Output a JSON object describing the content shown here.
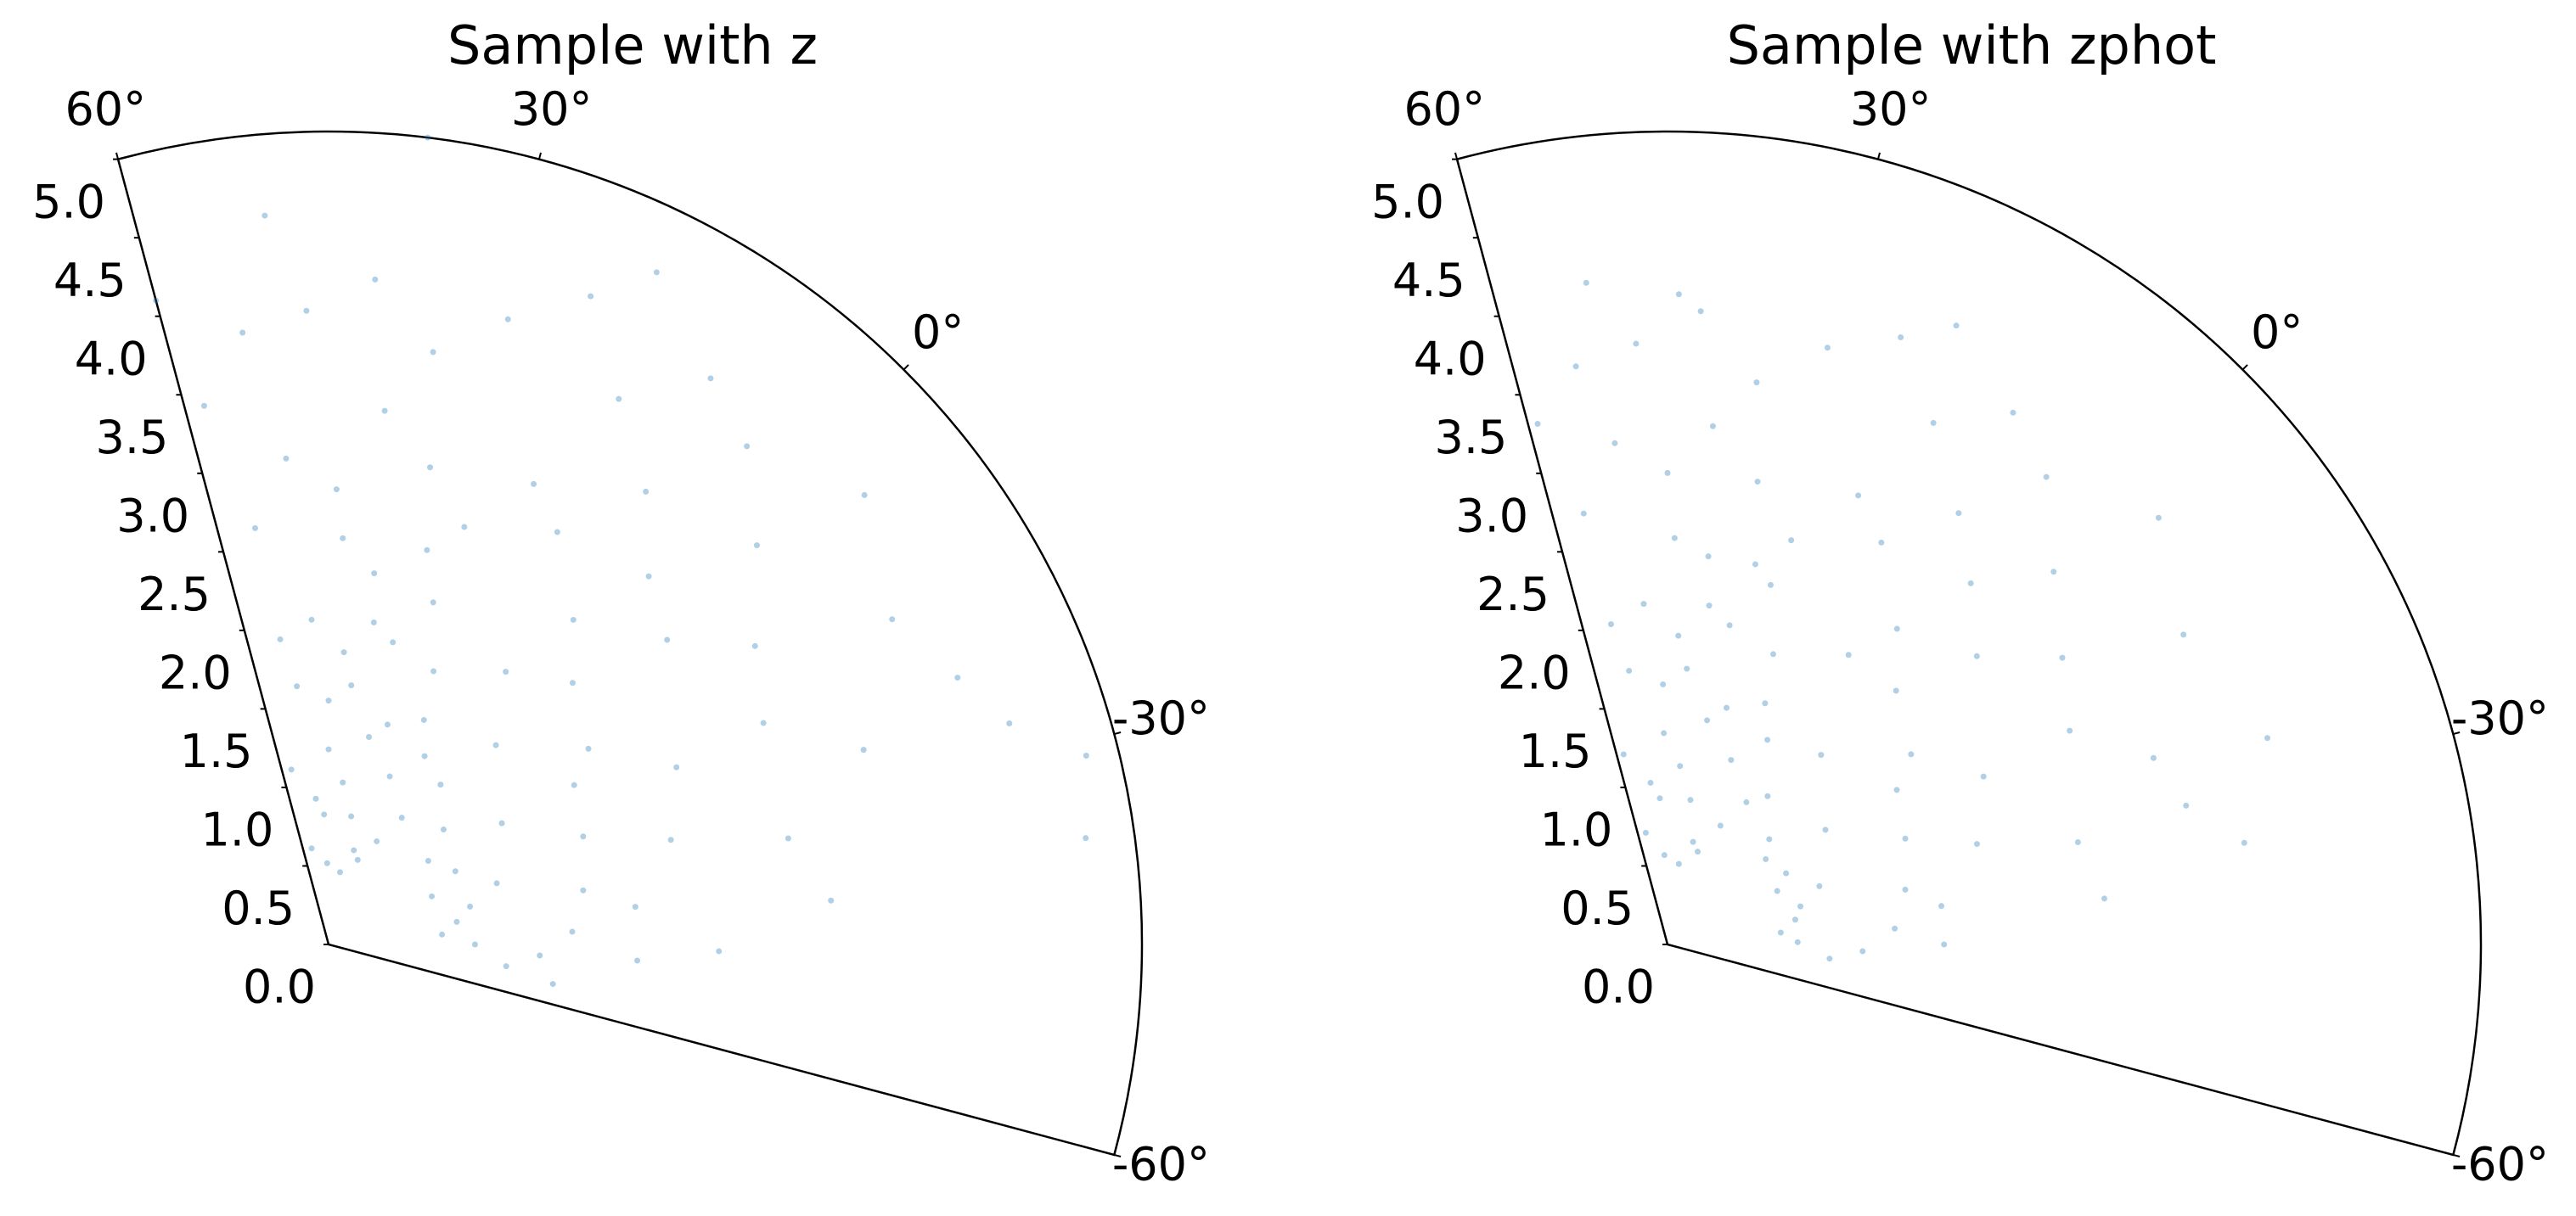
{
  "chart_data": [
    {
      "type": "scatter",
      "polar": true,
      "title": "Sample with z",
      "color": "#1f77b4",
      "thetalim": [
        -60,
        60
      ],
      "thetaticks": [
        {
          "value": 60,
          "label": "60°"
        },
        {
          "value": 30,
          "label": "30°"
        },
        {
          "value": 0,
          "label": "0°"
        },
        {
          "value": -30,
          "label": "-30°"
        },
        {
          "value": -60,
          "label": "-60°"
        }
      ],
      "rlim": [
        0,
        5
      ],
      "rticks": [
        {
          "value": 0,
          "label": "0.0"
        },
        0.5,
        {
          "value": 1,
          "label": "1.0"
        },
        1.5,
        {
          "value": 2,
          "label": "2.0"
        },
        2.5,
        {
          "value": 3,
          "label": "3.0"
        },
        3.5,
        {
          "value": 4,
          "label": "4.0"
        },
        4.5,
        {
          "value": 5,
          "label": "5.0"
        }
      ],
      "theta": [
        55,
        50,
        45,
        40,
        35,
        30,
        25,
        20,
        52,
        48,
        42,
        38,
        33,
        28,
        22,
        18,
        57,
        46,
        36,
        26,
        15,
        10,
        5,
        0,
        -5,
        -10,
        -15,
        -20,
        -25,
        -30,
        -35,
        -40,
        -45,
        12,
        8,
        2,
        -3,
        -8,
        -12,
        -18,
        -22,
        -28,
        -33,
        -38,
        -42,
        -48,
        55,
        50,
        44,
        39,
        33,
        27,
        21,
        16,
        10,
        4,
        -2,
        -10,
        -18,
        -25,
        -32,
        -40,
        -46,
        58,
        53,
        47,
        41,
        35,
        29,
        23,
        17,
        11,
        5,
        -5,
        -15,
        -27,
        -37,
        -31,
        50,
        60,
        38,
        45,
        40,
        34,
        30,
        47,
        37,
        24,
        43,
        31,
        54,
        -48,
        -52,
        -55,
        -22,
        19
      ],
      "r": [
        0.6,
        0.9,
        1.2,
        1.0,
        0.8,
        1.4,
        1.1,
        0.7,
        1.6,
        2.0,
        1.8,
        2.3,
        1.9,
        2.2,
        1.5,
        1.3,
        1.1,
        0.5,
        0.45,
        0.55,
        0.9,
        1.2,
        1.6,
        1.0,
        0.8,
        1.3,
        0.9,
        0.7,
        1.1,
        0.9,
        0.8,
        0.7,
        0.9,
        2.0,
        2.5,
        2.2,
        2.8,
        2.0,
        1.8,
        2.4,
        1.7,
        2.2,
        1.6,
        1.9,
        1.5,
        1.3,
        2.6,
        3.0,
        2.8,
        3.3,
        3.0,
        2.7,
        3.1,
        2.9,
        3.4,
        3.0,
        3.6,
        3.2,
        3.0,
        3.5,
        2.9,
        3.1,
        2.4,
        3.4,
        3.8,
        3.9,
        4.1,
        3.7,
        4.0,
        4.3,
        3.8,
        4.2,
        4.0,
        4.3,
        4.0,
        4.4,
        4.7,
        4.8,
        4.5,
        4.1,
        5.0,
        1.5,
        1.6,
        1.3,
        0.6,
        0.8,
        2.0,
        1.8,
        2.5,
        2.5,
        1.9,
        1.9,
        1.1,
        1.4,
        4.2,
        4.6
      ]
    },
    {
      "type": "scatter",
      "polar": true,
      "title": "Sample with zphot",
      "color": "#1f77b4",
      "thetalim": [
        -60,
        60
      ],
      "thetaticks": [
        {
          "value": 60,
          "label": "60°"
        },
        {
          "value": 30,
          "label": "30°"
        },
        {
          "value": 0,
          "label": "0°"
        },
        {
          "value": -30,
          "label": "-30°"
        },
        {
          "value": -60,
          "label": "-60°"
        }
      ],
      "rlim": [
        0,
        5
      ],
      "rticks": [
        {
          "value": 0,
          "label": "0.0"
        },
        0.5,
        {
          "value": 1,
          "label": "1.0"
        },
        1.5,
        {
          "value": 2,
          "label": "2.0"
        },
        2.5,
        {
          "value": 3,
          "label": "3.0"
        },
        3.5,
        {
          "value": 4,
          "label": "4.0"
        },
        4.5,
        {
          "value": 5,
          "label": "5.0"
        }
      ],
      "theta": [
        56,
        51,
        46,
        41,
        36,
        31,
        26,
        21,
        53,
        49,
        43,
        39,
        34,
        29,
        23,
        19,
        58,
        47,
        37,
        27,
        16,
        11,
        6,
        1,
        -4,
        -9,
        -14,
        -19,
        -24,
        -29,
        -34,
        -39,
        -44,
        13,
        9,
        3,
        -2,
        -7,
        -11,
        -17,
        -21,
        -27,
        -32,
        -37,
        -41,
        -47,
        56,
        51,
        45,
        40,
        34,
        28,
        22,
        17,
        11,
        5,
        -1,
        -9,
        -17,
        -24,
        -31,
        -39,
        59,
        54,
        48,
        42,
        36,
        30,
        24,
        18,
        12,
        6,
        -4,
        -14,
        -26,
        -35,
        52,
        44,
        46,
        41,
        35,
        31,
        48,
        38,
        25,
        44,
        32,
        55,
        -45,
        -50,
        -30,
        20
      ],
      "r": [
        0.7,
        1.0,
        1.3,
        1.1,
        0.9,
        1.5,
        1.2,
        0.8,
        1.7,
        2.1,
        1.9,
        2.4,
        2.0,
        2.3,
        1.6,
        1.4,
        1.2,
        0.55,
        0.5,
        0.6,
        1.0,
        1.1,
        1.5,
        0.9,
        0.8,
        1.2,
        0.85,
        0.75,
        1.0,
        0.85,
        0.8,
        0.7,
        0.8,
        2.1,
        2.4,
        2.1,
        2.6,
        1.9,
        1.7,
        2.2,
        1.6,
        2.0,
        1.5,
        1.7,
        1.4,
        1.2,
        2.7,
        3.1,
        2.9,
        3.2,
        2.9,
        2.6,
        3.0,
        2.8,
        3.2,
        2.9,
        3.3,
        3.0,
        2.8,
        3.2,
        2.6,
        2.7,
        3.3,
        3.6,
        3.7,
        3.9,
        3.5,
        3.8,
        4.0,
        3.6,
        3.9,
        3.7,
        4.0,
        3.7,
        3.9,
        3.6,
        4.1,
        4.0,
        1.6,
        1.7,
        1.4,
        0.65,
        0.9,
        2.1,
        1.9,
        2.5,
        2.4,
        2.0,
        1.7,
        1.0,
        3.3,
        4.2
      ]
    }
  ]
}
